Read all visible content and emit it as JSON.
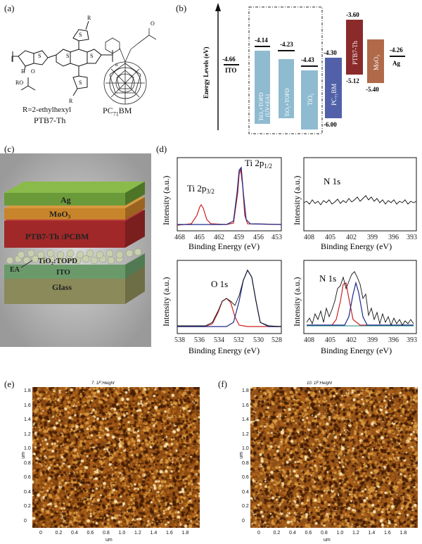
{
  "panels": {
    "a": {
      "label": "(a)",
      "r_group": "R=2-ethylhexyl",
      "ptb7_name": "PTB7-Th",
      "pcbm_name": "PC",
      "pcbm_sub": "71",
      "pcbm_suffix": "BM",
      "atom_F": "F",
      "atom_S": "S",
      "atom_R": "R",
      "atom_O": "O",
      "atom_RO": "RO",
      "atom_n": "n"
    },
    "b": {
      "label": "(b)",
      "ylabel": "Energy Levels (eV)",
      "ito": {
        "name": "ITO",
        "value": "-4.66"
      },
      "tio_uv": {
        "name1": "TiO₂+TOPD",
        "name2": "(UV+EA)",
        "value": "-4.14"
      },
      "tio_topd": {
        "name": "TiO₂+TOPD",
        "value": "-4.23"
      },
      "tio2": {
        "name": "TiO₂",
        "value": "-4.43"
      },
      "pcbm": {
        "name": "PC₇₁BM",
        "top": "-4.30",
        "bottom": "-6.00"
      },
      "ptb7": {
        "name": "PTB7-Th",
        "top": "-3.60",
        "bottom": "-5.12"
      },
      "moo3": {
        "name": "MoO₃",
        "bottom": "-5.40"
      },
      "ag": {
        "name": "Ag",
        "value": "-4.26"
      }
    },
    "c": {
      "label": "(c)",
      "ag": "Ag",
      "moo3": "MoO₃",
      "active": "PTB7-Th :PCBM",
      "etl": "TiO₂:TOPD",
      "ito": "ITO",
      "glass": "Glass",
      "ea": "EA"
    },
    "d": {
      "label": "(d)",
      "xlabel": "Binding Energy (eV)",
      "ylabel": "Intensity (a.u.)",
      "ti_xticks": [
        "468",
        "465",
        "462",
        "459",
        "456",
        "453"
      ],
      "n1_xticks": [
        "408",
        "405",
        "402",
        "399",
        "396",
        "393"
      ],
      "o_xticks": [
        "538",
        "536",
        "534",
        "532",
        "530",
        "528"
      ],
      "n2_xticks": [
        "408",
        "405",
        "402",
        "399",
        "396",
        "393"
      ],
      "ti_peak1": "Ti 2p",
      "ti_peak1_sub": "3/2",
      "ti_peak2": "Ti 2p",
      "ti_peak2_sub": "1/2",
      "n1_label": "N 1s",
      "o_label": "O 1s",
      "n2_label": "N 1s"
    },
    "e": {
      "label": "(e)",
      "title": "7. 1F:Height",
      "axis_unit": "um",
      "yticks": [
        "1.8",
        "1.6",
        "1.4",
        "1.2",
        "1.0",
        "0.8",
        "0.6",
        "0.4",
        "0.2",
        "0"
      ],
      "xticks": [
        "0",
        "0.2",
        "0.4",
        "0.6",
        "0.8",
        "1.0",
        "1.2",
        "1.4",
        "1.6",
        "1.8"
      ]
    },
    "f": {
      "label": "(f)",
      "title": "10. 1F:Height",
      "axis_unit": "um",
      "yticks": [
        "1.8",
        "1.6",
        "1.4",
        "1.2",
        "1.0",
        "0.8",
        "0.6",
        "0.4",
        "0.2",
        "0"
      ],
      "xticks": [
        "0",
        "0.2",
        "0.4",
        "0.6",
        "0.8",
        "1.0",
        "1.2",
        "1.4",
        "1.6",
        "1.8"
      ]
    }
  },
  "colors": {
    "tio_bar": "#8fbbd0",
    "pcbm_bar": "#5160a8",
    "ptb7_bar": "#8a2a2a",
    "moo3_bar": "#b06a4a",
    "fit_red": "#cc2222",
    "fit_blue": "#1a2a8a",
    "ag_layer": "#6a9a3a",
    "moo3_layer": "#c8842a",
    "active_layer": "#a02828",
    "ito_layer": "#6a9a6a",
    "glass_layer": "#8a8a5a"
  }
}
